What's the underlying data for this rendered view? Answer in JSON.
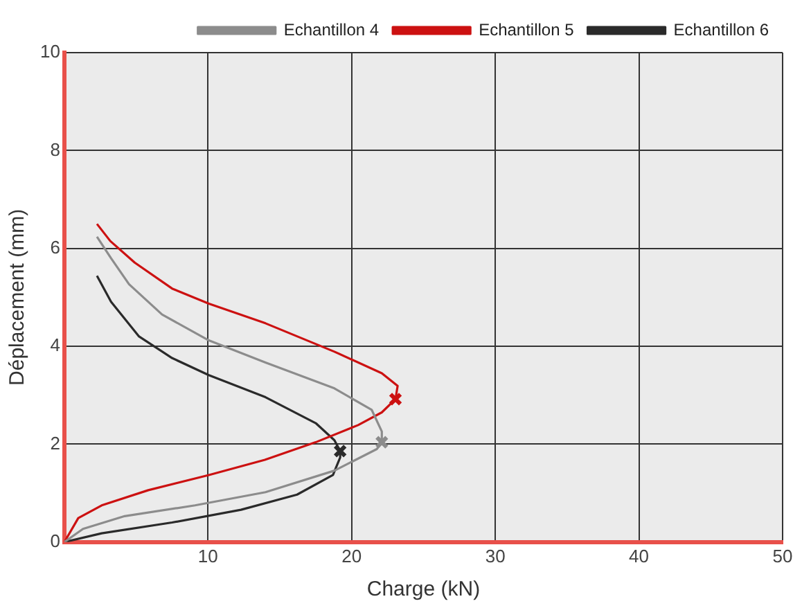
{
  "chart_data": {
    "type": "line",
    "xlabel": "Charge (kN)",
    "ylabel": "Déplacement (mm)",
    "xlim": [
      0,
      50
    ],
    "xticks": [
      {
        "value": 0,
        "label": null
      },
      10,
      20,
      30,
      40,
      50
    ],
    "ylim": [
      0,
      10
    ],
    "yticks": [
      0,
      2,
      4,
      6,
      8,
      10
    ],
    "grid": true,
    "legend": "top right",
    "marker": "none",
    "line_style": "solid",
    "series": [
      {
        "name": "Echantillon 4",
        "color": "#8c8c8c",
        "x": [
          0,
          1.3,
          4.2,
          9.1,
          14,
          18.8,
          21.75,
          22.1,
          22.1,
          21.4,
          18.8,
          14,
          10.06,
          6.8,
          4.5,
          3.25,
          2.27
        ],
        "values": [
          0,
          0.27,
          0.53,
          0.75,
          1.02,
          1.46,
          1.9,
          2.04,
          2.26,
          2.7,
          3.14,
          3.67,
          4.12,
          4.65,
          5.27,
          5.8,
          6.24
        ]
      },
      {
        "name": "Echantillon 5",
        "color": "#cc1111",
        "x": [
          0,
          0.97,
          2.6,
          5.84,
          10.06,
          13.96,
          17.5,
          20.45,
          22.1,
          23.05,
          23.2,
          22.1,
          18.8,
          14,
          10.06,
          7.5,
          4.9,
          3.2,
          2.27
        ],
        "values": [
          0,
          0.49,
          0.75,
          1.06,
          1.37,
          1.68,
          2.04,
          2.39,
          2.65,
          2.92,
          3.19,
          3.45,
          3.89,
          4.47,
          4.87,
          5.18,
          5.71,
          6.15,
          6.5
        ]
      },
      {
        "name": "Echantillon 6",
        "color": "#2a2a2a",
        "x": [
          0,
          2.6,
          7.5,
          12.3,
          16.2,
          18.7,
          19.2,
          19.2,
          18.8,
          17.5,
          14,
          10.06,
          7.5,
          5.2,
          3.25,
          2.27
        ],
        "values": [
          0,
          0.18,
          0.4,
          0.66,
          0.97,
          1.37,
          1.73,
          1.86,
          2.08,
          2.43,
          2.96,
          3.41,
          3.76,
          4.2,
          4.91,
          5.44
        ]
      },
      {
        "type": "scatter",
        "marker": "cross",
        "color": "#8c8c8c",
        "x": [
          22.1
        ],
        "values": [
          2.04
        ]
      },
      {
        "type": "scatter",
        "marker": "cross",
        "color": "#cc1111",
        "x": [
          23.05
        ],
        "values": [
          2.92
        ]
      },
      {
        "type": "scatter",
        "marker": "cross",
        "color": "#2a2a2a",
        "x": [
          19.2
        ],
        "values": [
          1.86
        ]
      }
    ]
  }
}
